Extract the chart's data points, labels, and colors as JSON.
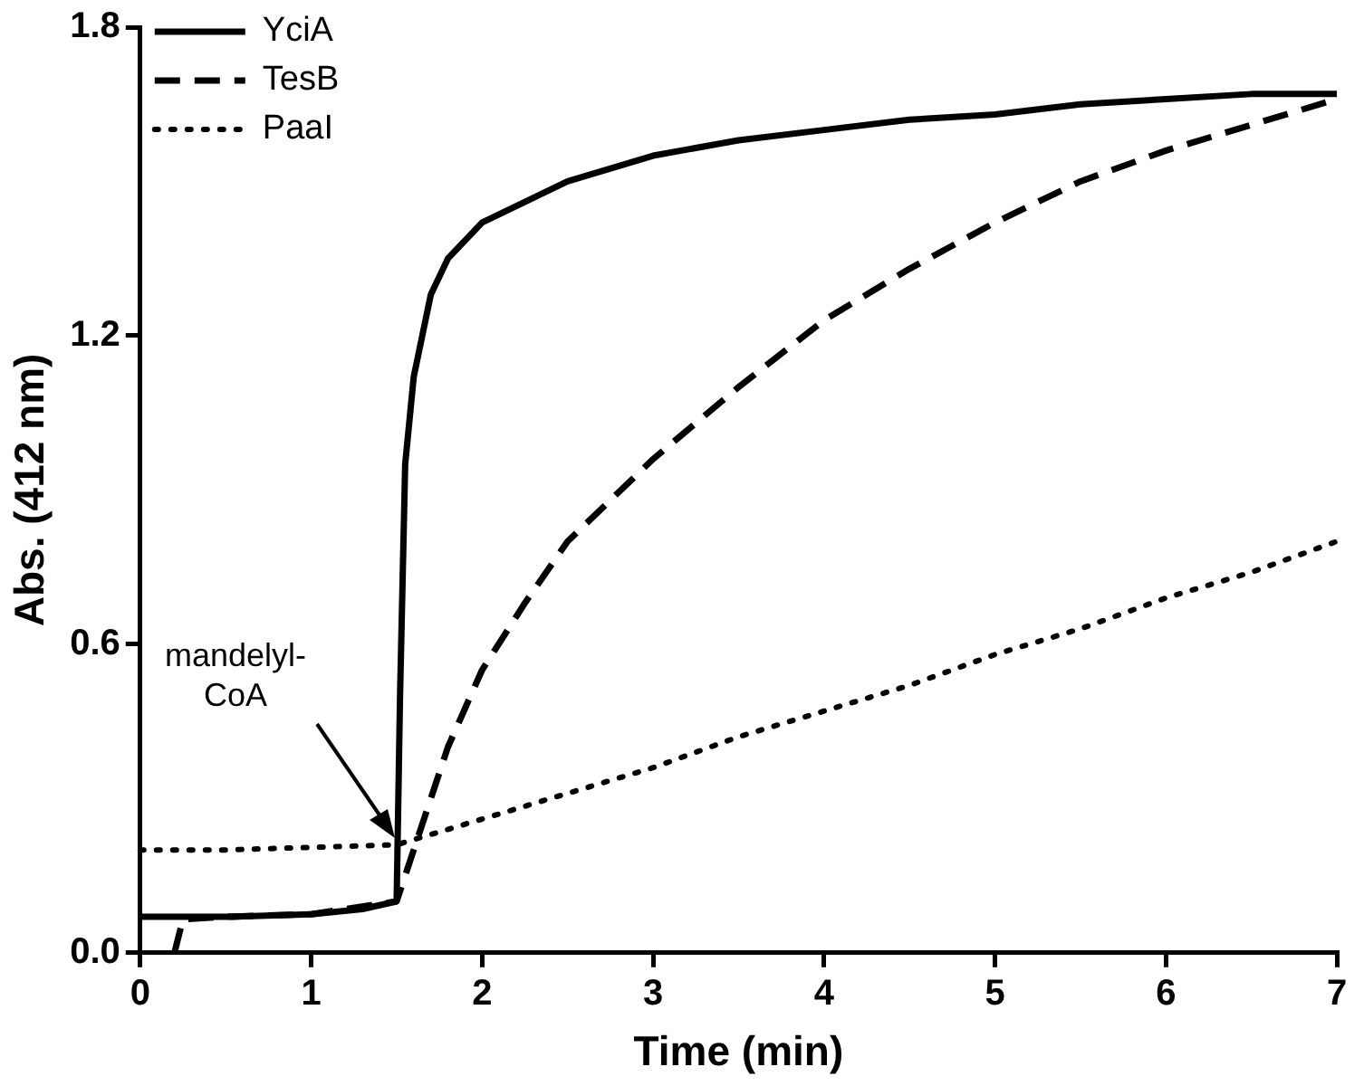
{
  "chart_data": {
    "type": "line",
    "xlabel": "Time (min)",
    "ylabel": "Abs. (412 nm)",
    "xlim": [
      0,
      7
    ],
    "xticks": [
      0,
      1,
      2,
      3,
      4,
      5,
      6,
      7
    ],
    "ylim": [
      0,
      1.8
    ],
    "yticks": [
      {
        "value": 0,
        "label": "0.0"
      },
      0.6,
      1.2,
      1.8
    ],
    "grid": false,
    "legend": "top left",
    "marker": "none",
    "annotations": [
      "mandelyl-\nCoA"
    ],
    "series": [
      {
        "name": "YciA",
        "color": "#000000",
        "line_style": "solid",
        "x": [
          0,
          0.5,
          1,
          1.3,
          1.5,
          1.52,
          1.55,
          1.6,
          1.7,
          1.8,
          2,
          2.25,
          2.5,
          3,
          3.5,
          4,
          4.5,
          5,
          5.5,
          6,
          6.5,
          7
        ],
        "values": [
          0.07,
          0.07,
          0.075,
          0.085,
          0.1,
          0.5,
          0.95,
          1.12,
          1.28,
          1.35,
          1.42,
          1.46,
          1.5,
          1.55,
          1.58,
          1.6,
          1.62,
          1.63,
          1.65,
          1.66,
          1.67,
          1.67
        ]
      },
      {
        "name": "TesB",
        "color": "#000000",
        "line_style": "dashed",
        "x": [
          0.2,
          0.25,
          0.5,
          1,
          1.5,
          1.6,
          1.7,
          1.8,
          2,
          2.25,
          2.5,
          3,
          3.5,
          4,
          4.5,
          5,
          5.5,
          6,
          6.5,
          7
        ],
        "values": [
          0.0,
          0.065,
          0.07,
          0.075,
          0.1,
          0.2,
          0.3,
          0.4,
          0.55,
          0.68,
          0.8,
          0.96,
          1.1,
          1.23,
          1.33,
          1.42,
          1.5,
          1.56,
          1.61,
          1.66
        ]
      },
      {
        "name": "PaaI",
        "color": "#000000",
        "line_style": "dotted",
        "x": [
          0,
          0.5,
          1,
          1.5,
          2,
          2.5,
          3,
          3.5,
          4,
          4.5,
          5,
          5.5,
          6,
          6.5,
          7
        ],
        "values": [
          0.2,
          0.2,
          0.205,
          0.21,
          0.26,
          0.31,
          0.36,
          0.42,
          0.47,
          0.52,
          0.58,
          0.63,
          0.69,
          0.74,
          0.8
        ]
      }
    ]
  }
}
